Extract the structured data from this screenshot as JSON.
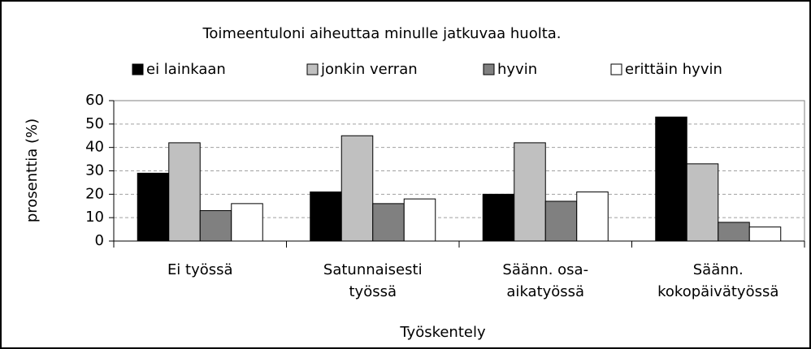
{
  "chart_data": {
    "type": "bar",
    "title": "Toimeentuloni aiheuttaa minulle jatkuvaa huolta.",
    "x_label": "Työskentely",
    "y_label": "prosenttia (%)",
    "categories": [
      [
        "Ei työssä"
      ],
      [
        "Satunnaisesti",
        "työssä"
      ],
      [
        "Säänn. osa-",
        "aikatyössä"
      ],
      [
        "Säänn.",
        "kokopäivätyössä"
      ]
    ],
    "series": [
      {
        "name": "ei lainkaan",
        "color": "#000000",
        "values": [
          29,
          21,
          20,
          53
        ]
      },
      {
        "name": "jonkin verran",
        "color": "#c0c0c0",
        "values": [
          42,
          45,
          42,
          33
        ]
      },
      {
        "name": "hyvin",
        "color": "#808080",
        "values": [
          13,
          16,
          17,
          8
        ]
      },
      {
        "name": "erittäin hyvin",
        "color": "#ffffff",
        "values": [
          16,
          18,
          21,
          6
        ]
      }
    ],
    "ylim": [
      0,
      60
    ],
    "yticks": [
      0,
      10,
      20,
      30,
      40,
      50,
      60
    ],
    "grid": true,
    "legend": "top"
  }
}
